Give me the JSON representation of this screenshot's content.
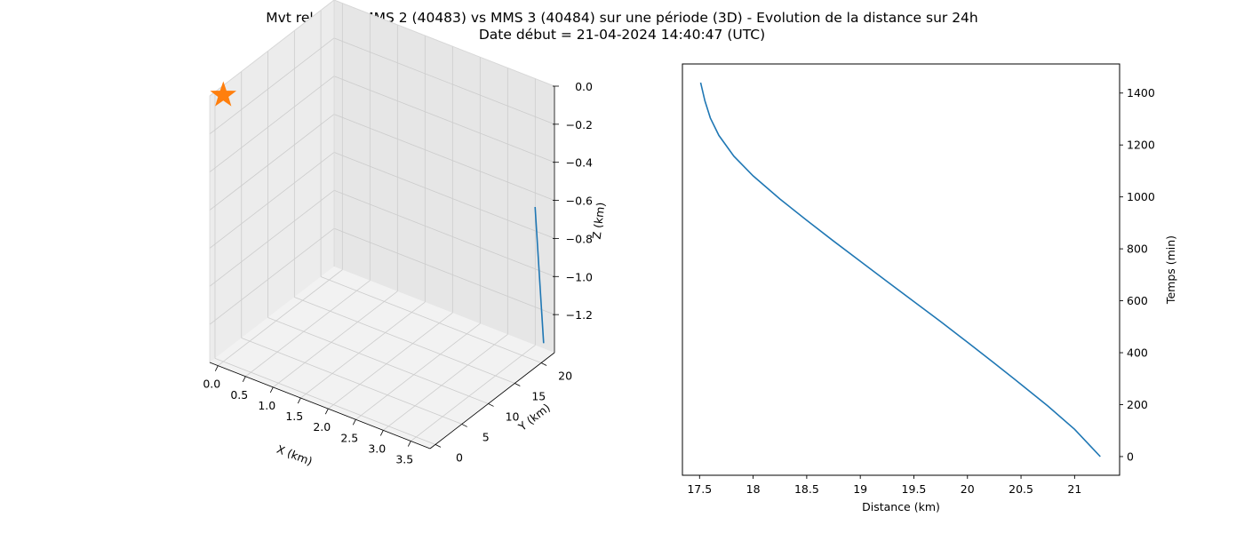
{
  "title_line1": "Mvt relatif de MMS 2 (40483) vs MMS 3 (40484) sur une période (3D) - Evolution de la distance sur 24h",
  "title_line2": "Date début = 21-04-2024 14:40:47 (UTC)",
  "colors": {
    "line": "#1f77b4",
    "star": "#ff7f0e",
    "pane": "#f2f2f2",
    "grid": "#cccccc"
  },
  "chart_data": [
    {
      "type": "line3d",
      "xlabel": "X (km)",
      "ylabel": "Y (km)",
      "zlabel": "Z (km)",
      "xlim": [
        -0.15,
        3.85
      ],
      "ylim": [
        -1.0,
        22.5
      ],
      "zlim": [
        -1.4,
        0.0
      ],
      "x_ticks": [
        "0.0",
        "0.5",
        "1.0",
        "1.5",
        "2.0",
        "2.5",
        "3.0",
        "3.5"
      ],
      "y_ticks": [
        "0",
        "5",
        "10",
        "15",
        "20"
      ],
      "z_ticks": [
        "0.0",
        "−0.2",
        "−0.4",
        "−0.6",
        "−0.8",
        "−1.0",
        "−1.2"
      ],
      "series": [
        {
          "x": [
            3.72,
            3.75
          ],
          "y": [
            20.2,
            21.5
          ],
          "z": [
            -0.6,
            -1.34
          ]
        }
      ],
      "marker": {
        "shape": "star",
        "x": 0.0,
        "y": 0.0,
        "z": 0.0
      }
    },
    {
      "type": "line",
      "xlabel": "Distance (km)",
      "ylabel": "Temps (min)",
      "xlim": [
        17.34,
        21.42
      ],
      "ylim": [
        -72,
        1512
      ],
      "x_ticks": [
        17.5,
        18.0,
        18.5,
        19.0,
        19.5,
        20.0,
        20.5,
        21.0
      ],
      "y_ticks": [
        0,
        200,
        400,
        600,
        800,
        1000,
        1200,
        1400
      ],
      "series": [
        {
          "x": [
            21.24,
            21.0,
            20.75,
            20.5,
            20.25,
            20.0,
            19.75,
            19.5,
            19.25,
            19.0,
            18.75,
            18.5,
            18.25,
            18.0,
            17.82,
            17.68,
            17.6,
            17.55,
            17.51
          ],
          "y": [
            0,
            105,
            195,
            278,
            360,
            440,
            520,
            597,
            674,
            752,
            830,
            910,
            992,
            1081,
            1157,
            1237,
            1304,
            1370,
            1440
          ]
        }
      ]
    }
  ]
}
